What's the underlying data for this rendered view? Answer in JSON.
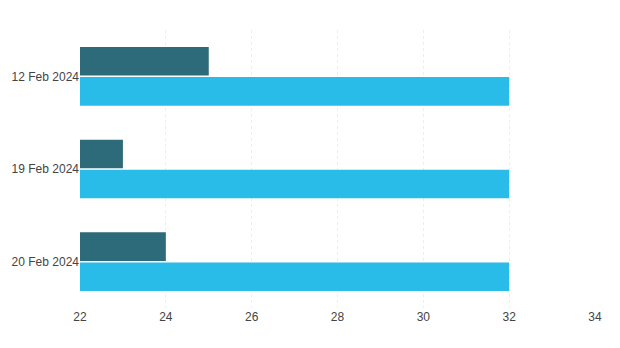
{
  "chart_data": {
    "type": "bar",
    "orientation": "horizontal",
    "categories": [
      "12 Feb 2024",
      "19 Feb 2024",
      "20 Feb 2024"
    ],
    "series": [
      {
        "color": "#2d6b7a",
        "values": [
          25,
          23,
          24
        ]
      },
      {
        "color": "#29bce8",
        "values": [
          32,
          32,
          32
        ]
      }
    ],
    "xlim": [
      22,
      34
    ],
    "xticks": [
      22,
      24,
      26,
      28,
      30,
      32,
      34
    ],
    "grid": true
  }
}
